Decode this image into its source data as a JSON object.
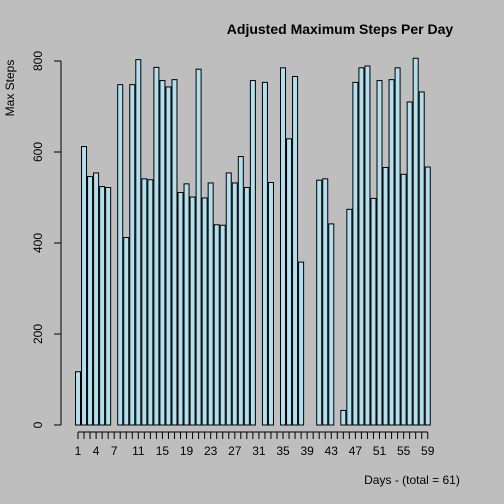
{
  "chart_data": {
    "type": "bar",
    "title": "Adjusted Maximum Steps Per Day",
    "xlabel": "Days - (total = 61)",
    "ylabel": "Max Steps",
    "ylim": [
      0,
      800
    ],
    "yticks": [
      0,
      200,
      400,
      600,
      800
    ],
    "xticks": [
      1,
      4,
      7,
      11,
      15,
      19,
      23,
      27,
      31,
      35,
      39,
      43,
      47,
      51,
      55,
      59
    ],
    "grid": false,
    "legend": "none",
    "colors": {
      "bar_fill": "#b2dfee",
      "bar_stroke": "#000000",
      "background": "#bebebe"
    },
    "x": [
      1,
      2,
      3,
      4,
      5,
      6,
      7,
      8,
      9,
      10,
      11,
      12,
      13,
      14,
      15,
      16,
      17,
      18,
      19,
      20,
      21,
      22,
      23,
      24,
      25,
      26,
      27,
      28,
      29,
      30,
      31,
      32,
      33,
      34,
      35,
      36,
      37,
      38,
      39,
      40,
      41,
      42,
      43,
      44,
      45,
      46,
      47,
      48,
      49,
      50,
      51,
      52,
      53,
      54,
      55,
      56,
      57,
      58,
      59,
      60,
      61
    ],
    "values": [
      117,
      612,
      546,
      554,
      524,
      522,
      0,
      748,
      412,
      748,
      803,
      541,
      539,
      786,
      757,
      743,
      759,
      511,
      530,
      501,
      782,
      499,
      532,
      440,
      439,
      554,
      532,
      590,
      522,
      757,
      0,
      753,
      533,
      0,
      785,
      629,
      766,
      358,
      0,
      0,
      538,
      541,
      442,
      0,
      32,
      474,
      753,
      785,
      789,
      498,
      757,
      566,
      759,
      785,
      551,
      710,
      806,
      732,
      567,
      0,
      0
    ]
  }
}
